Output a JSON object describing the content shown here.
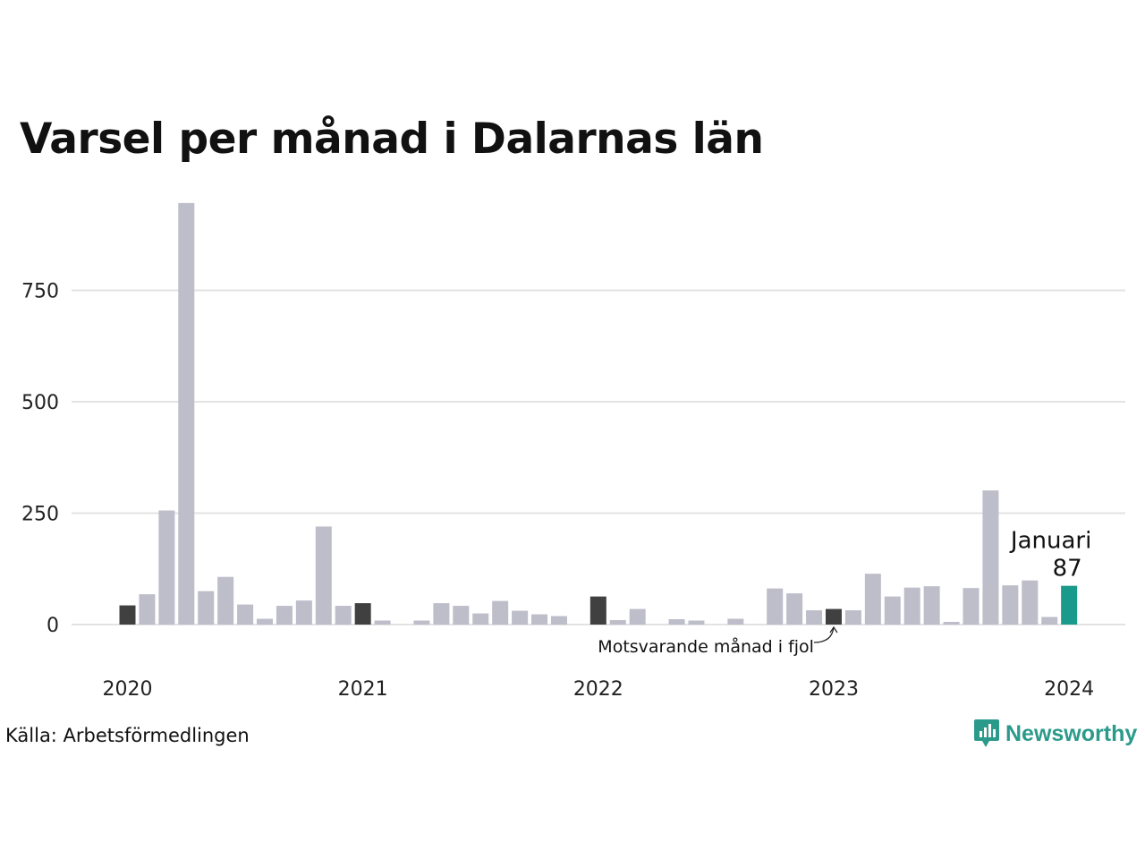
{
  "title": "Varsel per månad i Dalarnas län",
  "source": "Källa: Arbetsförmedlingen",
  "brand": "Newsworthy",
  "colors": {
    "default_bar": "#bebdca",
    "highlight_bar": "#404040",
    "current_bar": "#1a9a8a",
    "grid": "#e3e3e3",
    "brand": "#2b9a8b"
  },
  "chart_data": {
    "type": "bar",
    "title": "Varsel per månad i Dalarnas län",
    "xlabel": "",
    "ylabel": "",
    "ylim": [
      0,
      950
    ],
    "yticks": [
      0,
      250,
      500,
      750
    ],
    "grid": true,
    "x_tick_labels": [
      {
        "label": "2020",
        "index": 0
      },
      {
        "label": "2021",
        "index": 12
      },
      {
        "label": "2022",
        "index": 24
      },
      {
        "label": "2023",
        "index": 36
      },
      {
        "label": "2024",
        "index": 48
      }
    ],
    "categories": [
      "2020-01",
      "2020-02",
      "2020-03",
      "2020-04",
      "2020-05",
      "2020-06",
      "2020-07",
      "2020-08",
      "2020-09",
      "2020-10",
      "2020-11",
      "2020-12",
      "2021-01",
      "2021-02",
      "2021-03",
      "2021-04",
      "2021-05",
      "2021-06",
      "2021-07",
      "2021-08",
      "2021-09",
      "2021-10",
      "2021-11",
      "2021-12",
      "2022-01",
      "2022-02",
      "2022-03",
      "2022-04",
      "2022-05",
      "2022-06",
      "2022-07",
      "2022-08",
      "2022-09",
      "2022-10",
      "2022-11",
      "2022-12",
      "2023-01",
      "2023-02",
      "2023-03",
      "2023-04",
      "2023-05",
      "2023-06",
      "2023-07",
      "2023-08",
      "2023-09",
      "2023-10",
      "2023-11",
      "2023-12",
      "2024-01"
    ],
    "values": [
      43,
      68,
      256,
      946,
      75,
      107,
      45,
      13,
      42,
      54,
      220,
      42,
      48,
      9,
      0,
      9,
      48,
      42,
      25,
      53,
      31,
      23,
      19,
      0,
      63,
      10,
      35,
      0,
      12,
      9,
      0,
      13,
      0,
      81,
      70,
      32,
      35,
      32,
      114,
      63,
      83,
      86,
      6,
      82,
      301,
      88,
      99,
      17,
      87
    ],
    "highlighted_indices": [
      0,
      12,
      24,
      36
    ],
    "current_index": 48,
    "annotations": {
      "current_label": "Januari",
      "current_value": "87",
      "previous_year_note": "Motsvarande månad i fjol"
    }
  }
}
